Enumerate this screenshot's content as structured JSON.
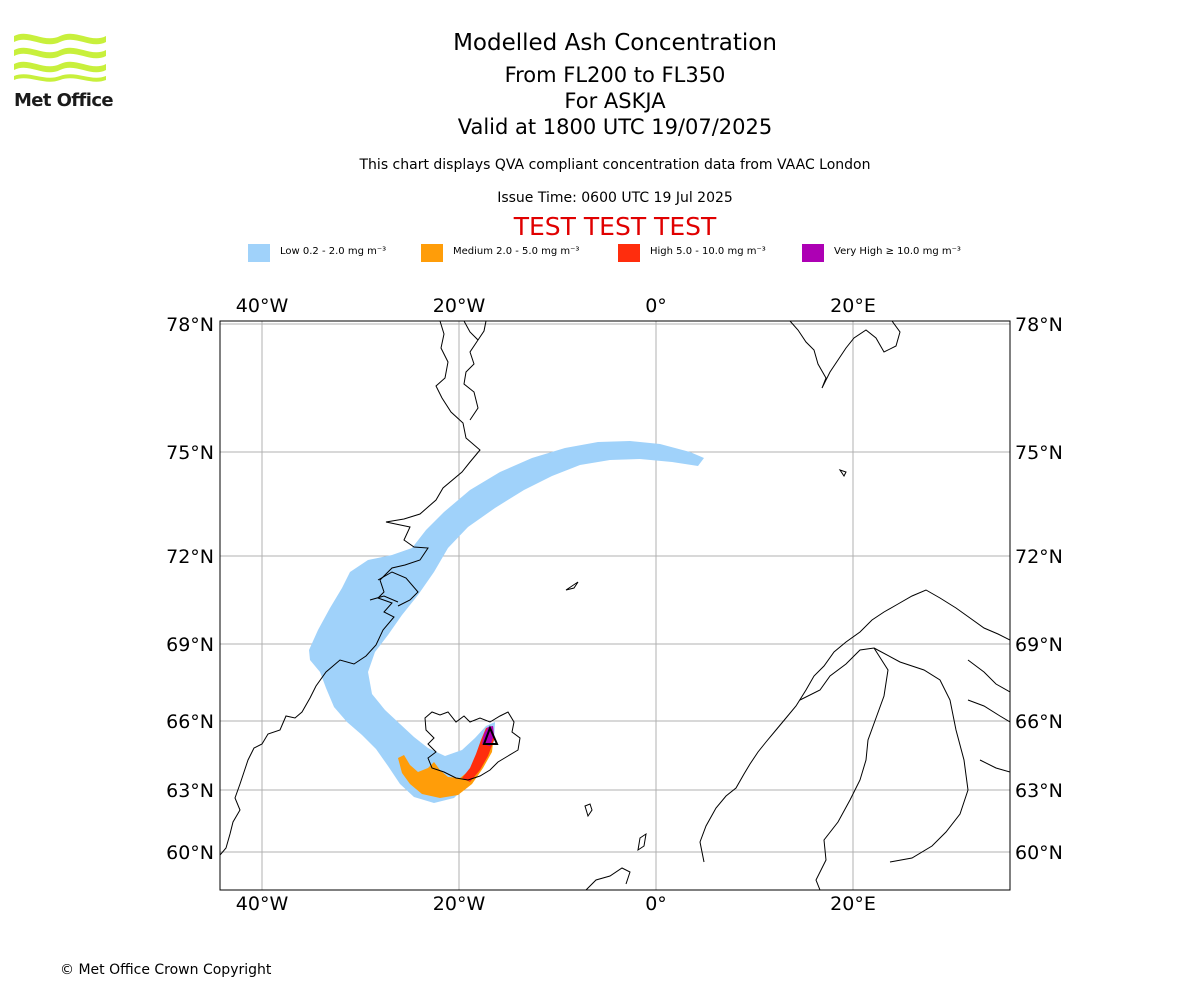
{
  "header": {
    "logo_text": "Met Office",
    "title": "Modelled Ash Concentration",
    "flight_levels": "From FL200 to FL350",
    "volcano_line": "For ASKJA",
    "valid_time": "Valid at 1800 UTC 19/07/2025",
    "description": "This chart displays QVA compliant concentration data from VAAC London",
    "issue_time": "Issue Time: 0600 UTC 19 Jul 2025",
    "test_banner": "TEST TEST TEST"
  },
  "legend": [
    {
      "label": "Low 0.2 - 2.0 mg m⁻³",
      "color": "#a0d2fa"
    },
    {
      "label": "Medium 2.0 - 5.0 mg m⁻³",
      "color": "#ff9d09"
    },
    {
      "label": "High 5.0 - 10.0 mg m⁻³",
      "color": "#ff2d0d"
    },
    {
      "label": "Very High ≥ 10.0 mg m⁻³",
      "color": "#ad00b4"
    }
  ],
  "map": {
    "lon_labels": [
      "40°W",
      "20°W",
      "0°",
      "20°E"
    ],
    "lat_labels": [
      "78°N",
      "75°N",
      "72°N",
      "69°N",
      "66°N",
      "63°N",
      "60°N"
    ],
    "volcano": "ASKJA"
  },
  "footer": {
    "copyright": "© Met Office Crown Copyright"
  }
}
